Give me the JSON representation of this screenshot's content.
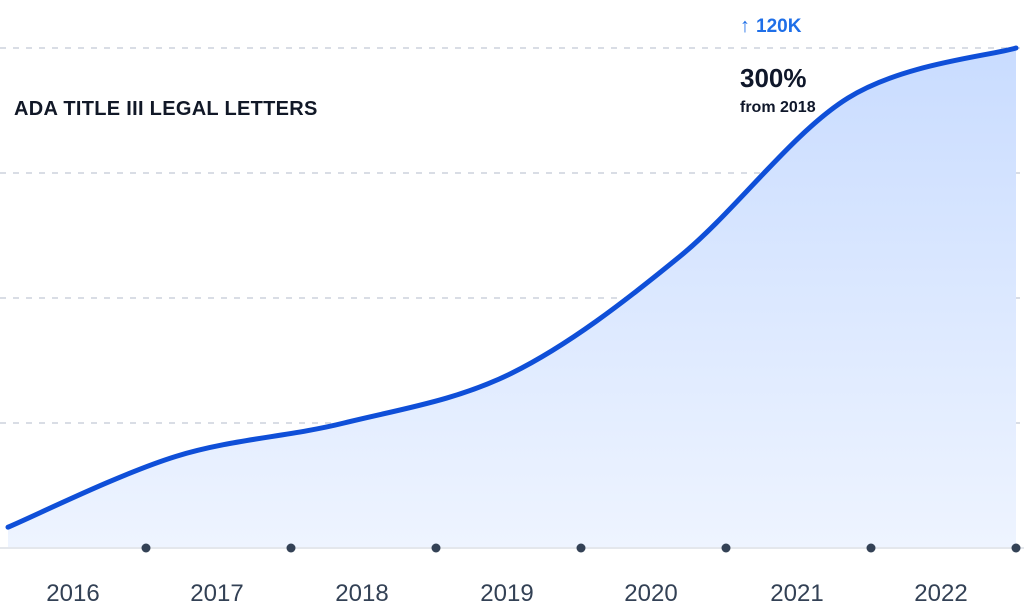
{
  "chart_data": {
    "type": "area",
    "title": "ADA TITLE III LEGAL LETTERS",
    "categories": [
      "2016",
      "2017",
      "2018",
      "2019",
      "2020",
      "2021",
      "2022"
    ],
    "series": [
      {
        "values": [
          5000,
          22000,
          30000,
          42000,
          70000,
          108000,
          120000
        ]
      }
    ],
    "annotations": {
      "peak_value": "120K",
      "growth_text": "300%",
      "growth_subtext": "from 2018"
    },
    "ylim": [
      0,
      120000
    ],
    "grid": true,
    "legend": "none"
  },
  "colors": {
    "line": "#0f4fd8",
    "fill_top": "#c9dcff",
    "fill_bottom": "#eef4ff",
    "grid": "#d9dde5",
    "axis": "#e4e7ec",
    "tick_dot": "#334155",
    "accent": "#1f6fe8",
    "text": "#0f172a"
  },
  "icons": {
    "peak_arrow": "arrow-up-icon"
  }
}
